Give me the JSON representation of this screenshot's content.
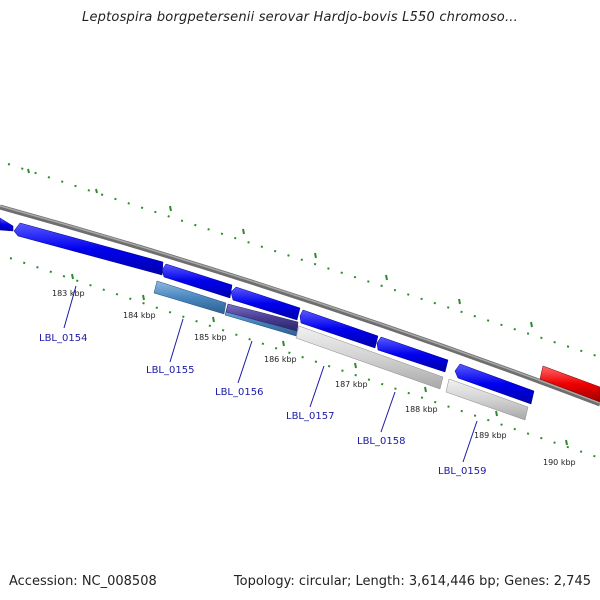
{
  "title": "Leptospira borgpetersenii serovar Hardjo-bovis L550 chromoso...",
  "footer": {
    "accession": "Accession: NC_008508",
    "topology": "Topology: circular; Length: 3,614,446 bp; Genes: 2,745"
  },
  "tick_labels": [
    "183 kbp",
    "184 kbp",
    "185 kbp",
    "186 kbp",
    "187 kbp",
    "188 kbp",
    "189 kbp",
    "190 kbp"
  ],
  "gene_labels": [
    "LBL_0154",
    "LBL_0155",
    "LBL_0156",
    "LBL_0157",
    "LBL_0158",
    "LBL_0159"
  ],
  "colors": {
    "backbone": "#808080",
    "cds": "#0000ee",
    "cds_highlight": "#4a87c0",
    "cds_dark": "#4a3f96",
    "gc_light": "#d2d2d2",
    "rna": "#ee0000",
    "tick_green": "#2e8b2e",
    "label_blue": "#1a1aa8"
  }
}
